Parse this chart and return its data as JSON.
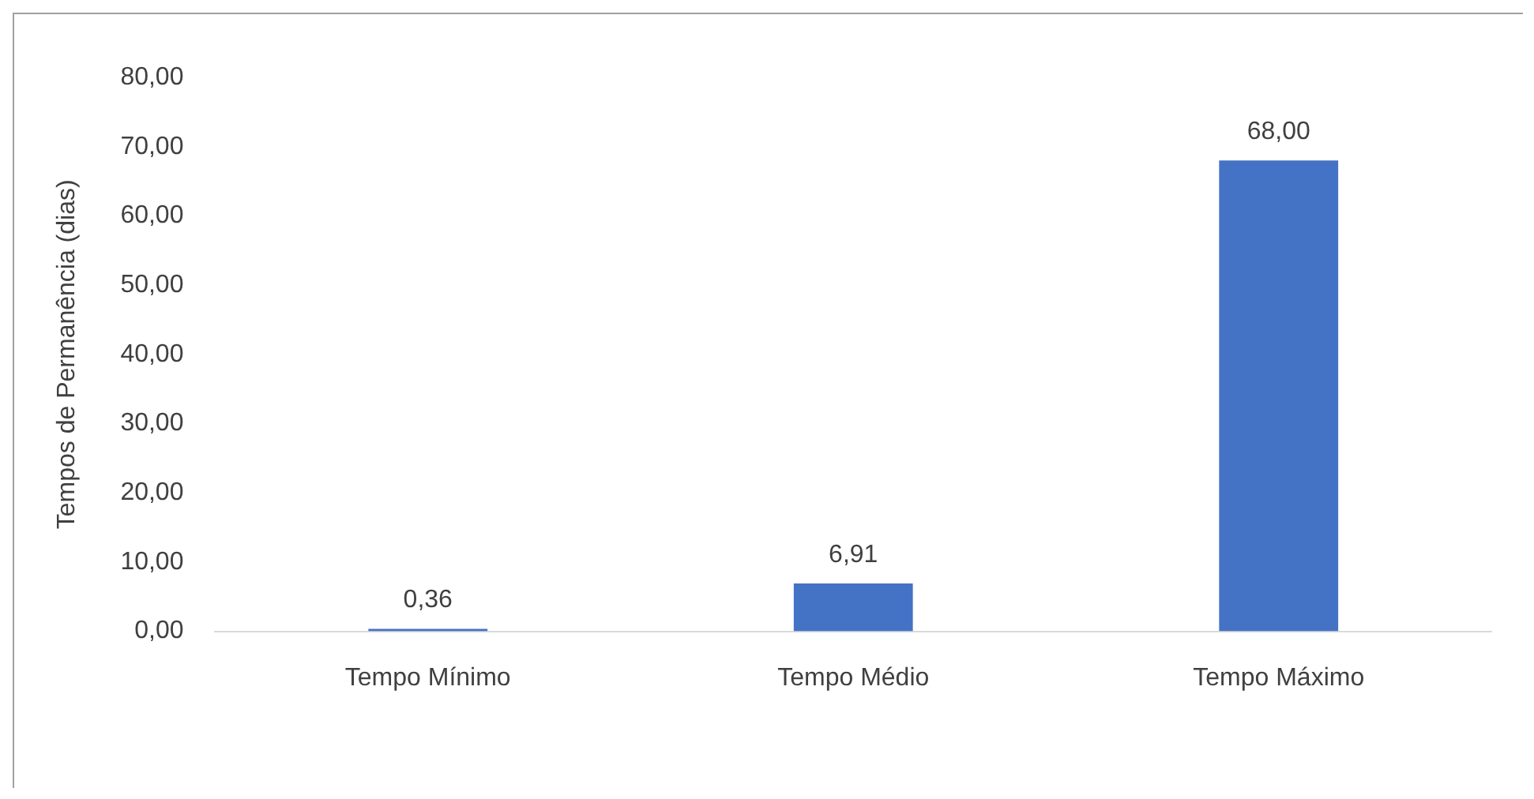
{
  "chart_data": {
    "type": "bar",
    "ylabel": "Tempos de Permanência (dias)",
    "categories": [
      "Tempo Mínimo",
      "Tempo Médio",
      "Tempo Máximo"
    ],
    "values": [
      0.36,
      6.91,
      68
    ],
    "value_labels": [
      "0,36",
      "6,91",
      "68,00"
    ],
    "color": "#4472c4",
    "ylim": [
      0,
      80
    ],
    "yticks": [
      {
        "value": 0,
        "label": "0,00"
      },
      {
        "value": 10,
        "label": "10,00"
      },
      {
        "value": 20,
        "label": "20,00"
      },
      {
        "value": 30,
        "label": "30,00"
      },
      {
        "value": 40,
        "label": "40,00"
      },
      {
        "value": 50,
        "label": "50,00"
      },
      {
        "value": 60,
        "label": "60,00"
      },
      {
        "value": 70,
        "label": "70,00"
      },
      {
        "value": 80,
        "label": "80,00"
      }
    ],
    "grid": false,
    "legend": false
  }
}
